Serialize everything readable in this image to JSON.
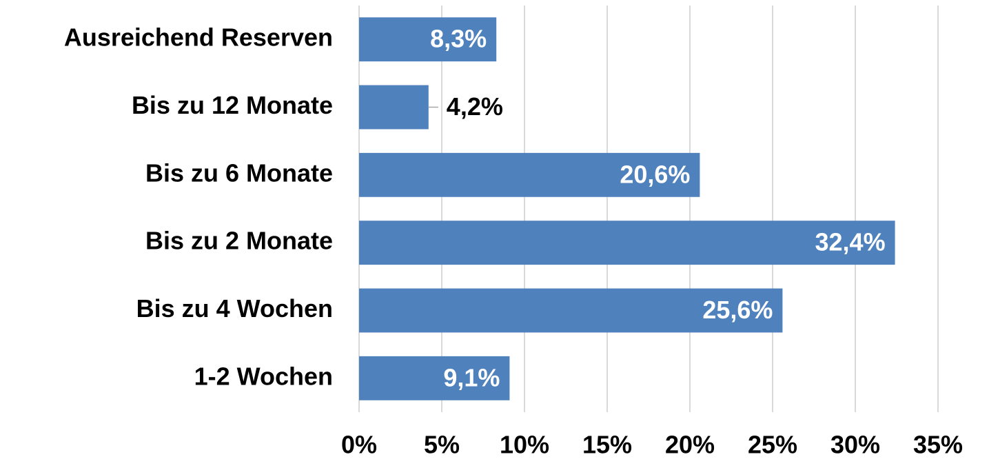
{
  "chart_data": {
    "type": "bar",
    "orientation": "horizontal",
    "categories": [
      "Ausreichend Reserven",
      "Bis zu 12 Monate",
      "Bis zu 6 Monate",
      "Bis zu 2 Monate",
      "Bis zu 4 Wochen",
      "1-2 Wochen"
    ],
    "values": [
      8.3,
      4.2,
      20.6,
      32.4,
      25.6,
      9.1
    ],
    "value_labels": [
      "8,3%",
      "4,2%",
      "20,6%",
      "32,4%",
      "25,6%",
      "9,1%"
    ],
    "color": "#4f81bd",
    "xlim": [
      0,
      35
    ],
    "xticks": [
      {
        "value": 0,
        "label": "0%"
      },
      {
        "value": 5,
        "label": "5%"
      },
      {
        "value": 10,
        "label": "10%"
      },
      {
        "value": 15,
        "label": "15%"
      },
      {
        "value": 20,
        "label": "20%"
      },
      {
        "value": 25,
        "label": "25%"
      },
      {
        "value": 30,
        "label": "30%"
      },
      {
        "value": 35,
        "label": "35%"
      }
    ],
    "grid": true
  }
}
